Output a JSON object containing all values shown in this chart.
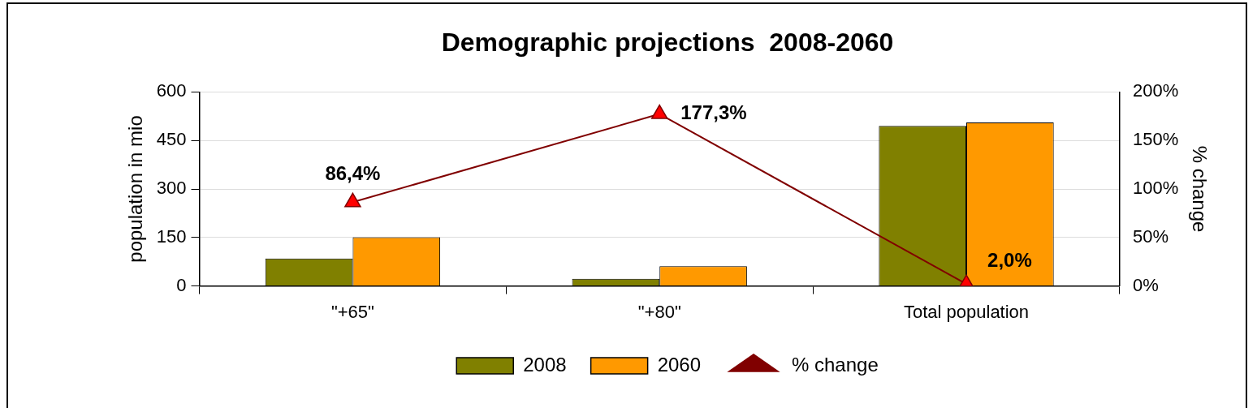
{
  "chart_data": {
    "type": "bar",
    "title": "Demographic projections  2008-2060",
    "ylabel": "population in mio",
    "y2label": "% change",
    "categories": [
      "\"+65\"",
      "\"+80\"",
      "Total population"
    ],
    "series": [
      {
        "name": "2008",
        "color": "#808000",
        "values": [
          85,
          22,
          495
        ]
      },
      {
        "name": "2060",
        "color": "#ff9900",
        "values": [
          151,
          61,
          506
        ]
      },
      {
        "name": "% change",
        "type": "line",
        "axis": "y2",
        "color": "#800000",
        "marker": "triangle",
        "values": [
          86.4,
          177.3,
          2.0
        ],
        "value_labels": [
          "86,4%",
          "177,3%",
          "2,0%"
        ]
      }
    ],
    "ylim": [
      0,
      600
    ],
    "yticks": [
      0,
      150,
      300,
      450,
      600
    ],
    "y2lim": [
      0,
      200
    ],
    "y2ticks": [
      {
        "value": 0,
        "label": "0%"
      },
      {
        "value": 50,
        "label": "50%"
      },
      {
        "value": 100,
        "label": "100%"
      },
      {
        "value": 150,
        "label": "150%"
      },
      {
        "value": 200,
        "label": "200%"
      }
    ],
    "grid": "y",
    "legend": "bottom"
  }
}
